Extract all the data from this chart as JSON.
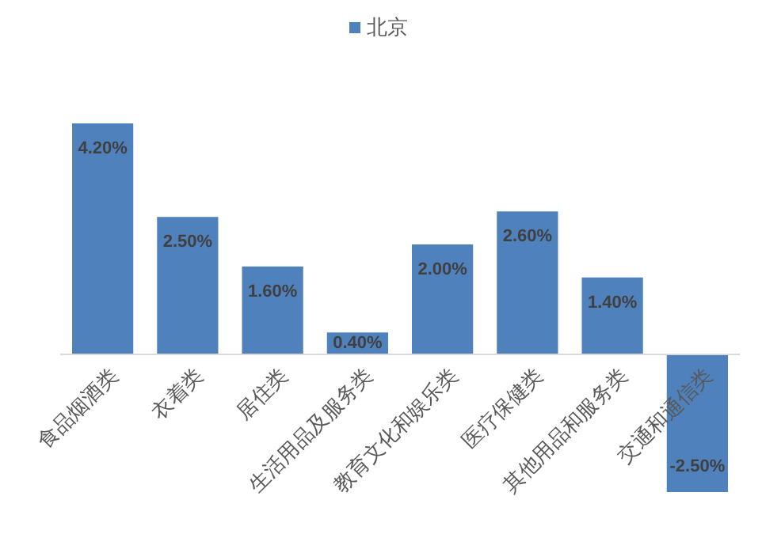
{
  "chart_data": {
    "type": "bar",
    "categories": [
      "食品烟酒类",
      "衣着类",
      "居住类",
      "生活用品及服务类",
      "教育文化和娱乐类",
      "医疗保健类",
      "其他用品和服务类",
      "交通和通信类"
    ],
    "series": [
      {
        "name": "北京",
        "color": "#4f81bd",
        "values": [
          4.2,
          2.5,
          1.6,
          0.4,
          2.0,
          2.6,
          1.4,
          -2.5
        ],
        "value_labels": [
          "4.20%",
          "2.50%",
          "1.60%",
          "0.40%",
          "2.00%",
          "2.60%",
          "1.40%",
          "-2.50%"
        ]
      }
    ],
    "legend": "top"
  }
}
